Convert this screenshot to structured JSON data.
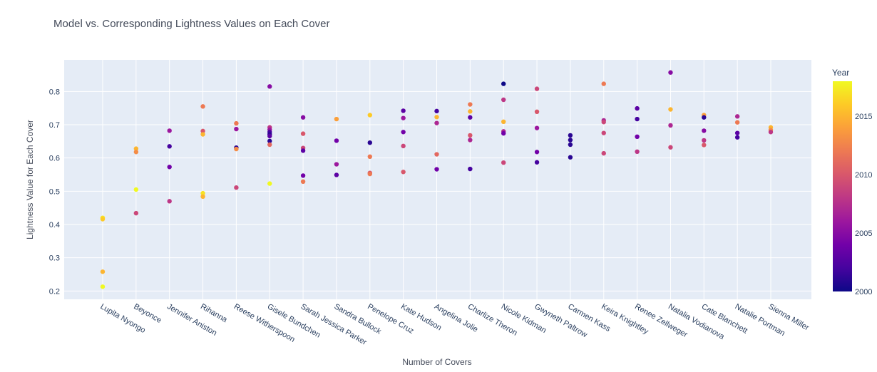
{
  "chart_data": {
    "type": "scatter",
    "title": "Model vs. Corresponding Lightness Values on Each Cover",
    "xlabel": "Number of Covers",
    "ylabel": "Lightness Value for Each Cover",
    "ylim": [
      0.175,
      0.895
    ],
    "yticks": [
      0.2,
      0.3,
      0.4,
      0.5,
      0.6,
      0.7,
      0.8
    ],
    "ytick_labels": [
      "0.2",
      "0.3",
      "0.4",
      "0.5",
      "0.6",
      "0.7",
      "0.8"
    ],
    "grid": true,
    "colorbar": {
      "title": "Year",
      "range": [
        2000,
        2018
      ],
      "ticks": [
        2000,
        2005,
        2010,
        2015
      ],
      "tick_labels": [
        "2000",
        "2005",
        "2010",
        "2015"
      ],
      "colorscale": [
        "#0d0887",
        "#46039f",
        "#7201a8",
        "#9c179e",
        "#bd3786",
        "#d8576b",
        "#ed7953",
        "#fb9f3a",
        "#fdca26",
        "#f0f921"
      ]
    },
    "categories": [
      "Lupita Nyongo",
      "Beyonce",
      "Jennifer Aniston",
      "Rihanna",
      "Reese Witherspoon",
      "Gisele Bundchen",
      "Sarah Jessica Parker",
      "Sandra Bullock",
      "Penelope Cruz",
      "Kate Hudson",
      "Angelina Jolie",
      "Charlize Theron",
      "Nicole Kidman",
      "Gwyneth Paltrow",
      "Carmen Kass",
      "Keira Knightley",
      "Renee Zellweger",
      "Natalia Vodianova",
      "Cate Blanchett",
      "Natalie Portman",
      "Sienna Miller"
    ],
    "points": [
      {
        "x": "Lupita Nyongo",
        "y": 0.42,
        "year": 2017
      },
      {
        "x": "Lupita Nyongo",
        "y": 0.416,
        "year": 2016
      },
      {
        "x": "Lupita Nyongo",
        "y": 0.258,
        "year": 2015
      },
      {
        "x": "Lupita Nyongo",
        "y": 0.213,
        "year": 2018
      },
      {
        "x": "Beyonce",
        "y": 0.628,
        "year": 2015
      },
      {
        "x": "Beyonce",
        "y": 0.618,
        "year": 2013
      },
      {
        "x": "Beyonce",
        "y": 0.505,
        "year": 2018
      },
      {
        "x": "Beyonce",
        "y": 0.434,
        "year": 2009
      },
      {
        "x": "Jennifer Aniston",
        "y": 0.682,
        "year": 2006
      },
      {
        "x": "Jennifer Aniston",
        "y": 0.635,
        "year": 2002
      },
      {
        "x": "Jennifer Aniston",
        "y": 0.573,
        "year": 2004
      },
      {
        "x": "Jennifer Aniston",
        "y": 0.47,
        "year": 2008
      },
      {
        "x": "Rihanna",
        "y": 0.755,
        "year": 2012
      },
      {
        "x": "Rihanna",
        "y": 0.681,
        "year": 2010
      },
      {
        "x": "Rihanna",
        "y": 0.671,
        "year": 2015
      },
      {
        "x": "Rihanna",
        "y": 0.494,
        "year": 2017
      },
      {
        "x": "Rihanna",
        "y": 0.484,
        "year": 2015
      },
      {
        "x": "Reese Witherspoon",
        "y": 0.704,
        "year": 2012
      },
      {
        "x": "Reese Witherspoon",
        "y": 0.687,
        "year": 2006
      },
      {
        "x": "Reese Witherspoon",
        "y": 0.631,
        "year": 2001
      },
      {
        "x": "Reese Witherspoon",
        "y": 0.627,
        "year": 2013
      },
      {
        "x": "Reese Witherspoon",
        "y": 0.511,
        "year": 2009
      },
      {
        "x": "Gisele Bundchen",
        "y": 0.815,
        "year": 2005
      },
      {
        "x": "Gisele Bundchen",
        "y": 0.692,
        "year": 2008
      },
      {
        "x": "Gisele Bundchen",
        "y": 0.685,
        "year": 2006
      },
      {
        "x": "Gisele Bundchen",
        "y": 0.678,
        "year": 2002
      },
      {
        "x": "Gisele Bundchen",
        "y": 0.671,
        "year": 2001
      },
      {
        "x": "Gisele Bundchen",
        "y": 0.666,
        "year": 2003
      },
      {
        "x": "Gisele Bundchen",
        "y": 0.651,
        "year": 2001
      },
      {
        "x": "Gisele Bundchen",
        "y": 0.64,
        "year": 2011
      },
      {
        "x": "Gisele Bundchen",
        "y": 0.523,
        "year": 2018
      },
      {
        "x": "Sarah Jessica Parker",
        "y": 0.722,
        "year": 2005
      },
      {
        "x": "Sarah Jessica Parker",
        "y": 0.673,
        "year": 2010
      },
      {
        "x": "Sarah Jessica Parker",
        "y": 0.63,
        "year": 2009
      },
      {
        "x": "Sarah Jessica Parker",
        "y": 0.622,
        "year": 2003
      },
      {
        "x": "Sarah Jessica Parker",
        "y": 0.547,
        "year": 2004
      },
      {
        "x": "Sarah Jessica Parker",
        "y": 0.529,
        "year": 2012
      },
      {
        "x": "Sandra Bullock",
        "y": 0.717,
        "year": 2014
      },
      {
        "x": "Sandra Bullock",
        "y": 0.652,
        "year": 2004
      },
      {
        "x": "Sandra Bullock",
        "y": 0.581,
        "year": 2006
      },
      {
        "x": "Sandra Bullock",
        "y": 0.549,
        "year": 2003
      },
      {
        "x": "Penelope Cruz",
        "y": 0.729,
        "year": 2016
      },
      {
        "x": "Penelope Cruz",
        "y": 0.646,
        "year": 2001
      },
      {
        "x": "Penelope Cruz",
        "y": 0.604,
        "year": 2012
      },
      {
        "x": "Penelope Cruz",
        "y": 0.555,
        "year": 2010
      },
      {
        "x": "Penelope Cruz",
        "y": 0.552,
        "year": 2012
      },
      {
        "x": "Kate Hudson",
        "y": 0.742,
        "year": 2003
      },
      {
        "x": "Kate Hudson",
        "y": 0.72,
        "year": 2006
      },
      {
        "x": "Kate Hudson",
        "y": 0.678,
        "year": 2004
      },
      {
        "x": "Kate Hudson",
        "y": 0.636,
        "year": 2009
      },
      {
        "x": "Kate Hudson",
        "y": 0.558,
        "year": 2010
      },
      {
        "x": "Angelina Jolie",
        "y": 0.741,
        "year": 2002
      },
      {
        "x": "Angelina Jolie",
        "y": 0.723,
        "year": 2015
      },
      {
        "x": "Angelina Jolie",
        "y": 0.705,
        "year": 2007
      },
      {
        "x": "Angelina Jolie",
        "y": 0.611,
        "year": 2011
      },
      {
        "x": "Angelina Jolie",
        "y": 0.566,
        "year": 2004
      },
      {
        "x": "Charlize Theron",
        "y": 0.761,
        "year": 2012
      },
      {
        "x": "Charlize Theron",
        "y": 0.74,
        "year": 2015
      },
      {
        "x": "Charlize Theron",
        "y": 0.722,
        "year": 2003
      },
      {
        "x": "Charlize Theron",
        "y": 0.668,
        "year": 2010
      },
      {
        "x": "Charlize Theron",
        "y": 0.654,
        "year": 2007
      },
      {
        "x": "Charlize Theron",
        "y": 0.567,
        "year": 2002
      },
      {
        "x": "Nicole Kidman",
        "y": 0.823,
        "year": 2000
      },
      {
        "x": "Nicole Kidman",
        "y": 0.775,
        "year": 2008
      },
      {
        "x": "Nicole Kidman",
        "y": 0.709,
        "year": 2015
      },
      {
        "x": "Nicole Kidman",
        "y": 0.68,
        "year": 2007
      },
      {
        "x": "Nicole Kidman",
        "y": 0.674,
        "year": 2004
      },
      {
        "x": "Nicole Kidman",
        "y": 0.586,
        "year": 2009
      },
      {
        "x": "Gwyneth Paltrow",
        "y": 0.808,
        "year": 2009
      },
      {
        "x": "Gwyneth Paltrow",
        "y": 0.739,
        "year": 2010
      },
      {
        "x": "Gwyneth Paltrow",
        "y": 0.69,
        "year": 2006
      },
      {
        "x": "Gwyneth Paltrow",
        "y": 0.618,
        "year": 2004
      },
      {
        "x": "Gwyneth Paltrow",
        "y": 0.587,
        "year": 2002
      },
      {
        "x": "Carmen Kass",
        "y": 0.668,
        "year": 2001
      },
      {
        "x": "Carmen Kass",
        "y": 0.654,
        "year": 2001
      },
      {
        "x": "Carmen Kass",
        "y": 0.64,
        "year": 2001
      },
      {
        "x": "Carmen Kass",
        "y": 0.602,
        "year": 2001
      },
      {
        "x": "Keira Knightley",
        "y": 0.823,
        "year": 2012
      },
      {
        "x": "Keira Knightley",
        "y": 0.713,
        "year": 2007
      },
      {
        "x": "Keira Knightley",
        "y": 0.708,
        "year": 2009
      },
      {
        "x": "Keira Knightley",
        "y": 0.675,
        "year": 2009
      },
      {
        "x": "Keira Knightley",
        "y": 0.614,
        "year": 2009
      },
      {
        "x": "Renee Zellweger",
        "y": 0.749,
        "year": 2003
      },
      {
        "x": "Renee Zellweger",
        "y": 0.717,
        "year": 2002
      },
      {
        "x": "Renee Zellweger",
        "y": 0.664,
        "year": 2004
      },
      {
        "x": "Renee Zellweger",
        "y": 0.619,
        "year": 2008
      },
      {
        "x": "Natalia Vodianova",
        "y": 0.857,
        "year": 2005
      },
      {
        "x": "Natalia Vodianova",
        "y": 0.746,
        "year": 2015
      },
      {
        "x": "Natalia Vodianova",
        "y": 0.698,
        "year": 2007
      },
      {
        "x": "Natalia Vodianova",
        "y": 0.632,
        "year": 2009
      },
      {
        "x": "Cate Blanchett",
        "y": 0.729,
        "year": 2014
      },
      {
        "x": "Cate Blanchett",
        "y": 0.722,
        "year": 2001
      },
      {
        "x": "Cate Blanchett",
        "y": 0.682,
        "year": 2005
      },
      {
        "x": "Cate Blanchett",
        "y": 0.653,
        "year": 2008
      },
      {
        "x": "Cate Blanchett",
        "y": 0.639,
        "year": 2010
      },
      {
        "x": "Natalie Portman",
        "y": 0.725,
        "year": 2007
      },
      {
        "x": "Natalie Portman",
        "y": 0.707,
        "year": 2012
      },
      {
        "x": "Natalie Portman",
        "y": 0.675,
        "year": 2003
      },
      {
        "x": "Natalie Portman",
        "y": 0.662,
        "year": 2002
      },
      {
        "x": "Sienna Miller",
        "y": 0.692,
        "year": 2015
      },
      {
        "x": "Sienna Miller",
        "y": 0.684,
        "year": 2013
      },
      {
        "x": "Sienna Miller",
        "y": 0.678,
        "year": 2008
      }
    ]
  }
}
